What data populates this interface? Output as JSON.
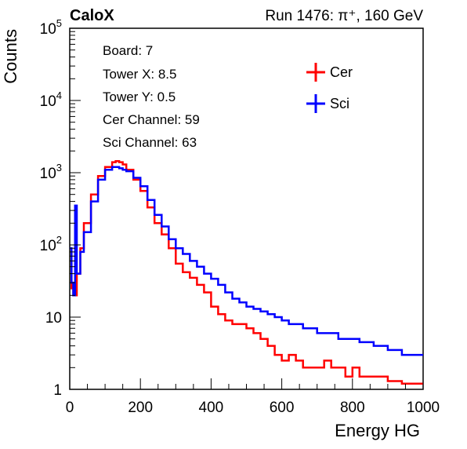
{
  "header": {
    "brand": "CaloX",
    "run_info": "Run 1476:   π⁺, 160 GeV"
  },
  "info_box": {
    "lines": [
      "Board: 7",
      "Tower X: 8.5",
      "Tower Y: 0.5",
      "Cer Channel: 59",
      "Sci Channel: 63"
    ]
  },
  "chart_data": {
    "type": "line",
    "xlabel": "Energy HG",
    "ylabel": "Counts",
    "xlim": [
      0,
      1000
    ],
    "ylim": [
      1,
      100000
    ],
    "y_scale": "log",
    "grid": false,
    "legend_position": "top-right",
    "x_ticks": [
      "0",
      "200",
      "400",
      "600",
      "800",
      "1000"
    ],
    "y_ticks": [
      {
        "base": "1",
        "exp": ""
      },
      {
        "base": "10",
        "exp": ""
      },
      {
        "base": "10",
        "exp": "2"
      },
      {
        "base": "10",
        "exp": "3"
      },
      {
        "base": "10",
        "exp": "4"
      },
      {
        "base": "10",
        "exp": "5"
      }
    ],
    "series": [
      {
        "name": "Cer",
        "color": "#ff0000",
        "x": [
          0,
          5,
          10,
          20,
          30,
          40,
          60,
          80,
          100,
          120,
          130,
          140,
          150,
          160,
          180,
          200,
          220,
          240,
          260,
          280,
          300,
          320,
          340,
          360,
          380,
          400,
          420,
          440,
          460,
          480,
          500,
          520,
          540,
          560,
          580,
          600,
          620,
          640,
          660,
          680,
          700,
          720,
          740,
          760,
          780,
          800,
          820,
          840,
          860,
          880,
          900,
          920,
          940,
          960,
          980,
          1000
        ],
        "y": [
          90,
          25,
          20,
          40,
          90,
          200,
          500,
          900,
          1200,
          1400,
          1450,
          1400,
          1300,
          1100,
          800,
          560,
          330,
          200,
          140,
          90,
          55,
          42,
          35,
          28,
          22,
          14,
          11,
          9,
          8,
          8,
          7,
          6,
          5,
          4,
          3,
          2.5,
          3,
          2.5,
          2,
          2,
          2,
          2.5,
          2,
          2,
          1.5,
          2,
          1.5,
          1.5,
          1.5,
          1.5,
          1.3,
          1.3,
          1.2,
          1.2,
          1.2,
          1.2
        ]
      },
      {
        "name": "Sci",
        "color": "#0000ff",
        "x": [
          0,
          5,
          10,
          15,
          20,
          30,
          40,
          60,
          80,
          100,
          120,
          130,
          140,
          150,
          160,
          180,
          200,
          220,
          240,
          260,
          280,
          300,
          320,
          340,
          360,
          380,
          400,
          420,
          440,
          460,
          480,
          500,
          520,
          540,
          560,
          580,
          600,
          620,
          640,
          660,
          680,
          700,
          720,
          740,
          760,
          780,
          800,
          820,
          840,
          860,
          880,
          900,
          920,
          940,
          960,
          980,
          1000
        ],
        "y": [
          90,
          30,
          20,
          350,
          40,
          80,
          150,
          400,
          800,
          1100,
          1200,
          1200,
          1150,
          1100,
          1050,
          850,
          650,
          420,
          260,
          180,
          120,
          90,
          75,
          60,
          50,
          40,
          34,
          28,
          22,
          18,
          16,
          14,
          13,
          12,
          11,
          10,
          9,
          8,
          8,
          7,
          7,
          6,
          6,
          6,
          5,
          5,
          5,
          4.5,
          4.5,
          4,
          4,
          3.5,
          3.5,
          3,
          3,
          3,
          3
        ]
      }
    ]
  }
}
